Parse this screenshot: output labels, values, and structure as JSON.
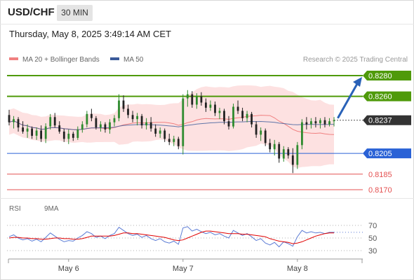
{
  "header": {
    "symbol": "USD/CHF",
    "timeframe": "30 MIN",
    "datetime": "Thursday, May 8, 2025 3:49:14 AM CET"
  },
  "legend": {
    "ma20_label": "MA 20 + Bollinger Bands",
    "ma50_label": "MA 50",
    "ma20_color": "#f08080",
    "ma50_color": "#3a5a9a",
    "credit": "Research © 2025 Trading Central"
  },
  "rsi_legend": {
    "rsi_label": "RSI",
    "ma_label": "9MA",
    "rsi_color": "#5b7bd5",
    "ma_color": "#e00000"
  },
  "levels": [
    {
      "value": "0.8280",
      "kind": "resistance",
      "color": "#4f9a0a"
    },
    {
      "value": "0.8260",
      "kind": "resistance",
      "color": "#4f9a0a"
    },
    {
      "value": "0.8237",
      "kind": "current",
      "color": "#333333"
    },
    {
      "value": "0.8205",
      "kind": "pivot",
      "color": "#2a62d6"
    },
    {
      "value": "0.8185",
      "kind": "support",
      "color": "#e45050"
    },
    {
      "value": "0.8170",
      "kind": "support",
      "color": "#e45050"
    }
  ],
  "chart_data": [
    {
      "type": "candlestick",
      "ylim": [
        0.816,
        0.829
      ],
      "x_ticks": [
        "May 6",
        "May 7",
        "May 8"
      ],
      "candles": [
        [
          0.8242,
          0.8247,
          0.8232,
          0.8235
        ],
        [
          0.8235,
          0.8241,
          0.8229,
          0.8238
        ],
        [
          0.8238,
          0.824,
          0.8226,
          0.823
        ],
        [
          0.823,
          0.8236,
          0.8224,
          0.8226
        ],
        [
          0.8226,
          0.8233,
          0.822,
          0.8229
        ],
        [
          0.8229,
          0.8231,
          0.8219,
          0.8222
        ],
        [
          0.8222,
          0.823,
          0.8218,
          0.8227
        ],
        [
          0.8227,
          0.8232,
          0.8216,
          0.8219
        ],
        [
          0.8219,
          0.8234,
          0.8215,
          0.8231
        ],
        [
          0.8231,
          0.8243,
          0.8228,
          0.824
        ],
        [
          0.824,
          0.8244,
          0.823,
          0.8232
        ],
        [
          0.8232,
          0.8236,
          0.8224,
          0.8226
        ],
        [
          0.8226,
          0.8229,
          0.8216,
          0.8219
        ],
        [
          0.8219,
          0.8228,
          0.8214,
          0.8224
        ],
        [
          0.8224,
          0.8226,
          0.8217,
          0.822
        ],
        [
          0.822,
          0.8231,
          0.8218,
          0.8228
        ],
        [
          0.8228,
          0.8236,
          0.8225,
          0.8233
        ],
        [
          0.8233,
          0.8246,
          0.823,
          0.8243
        ],
        [
          0.8243,
          0.8248,
          0.8236,
          0.8239
        ],
        [
          0.8239,
          0.8241,
          0.8228,
          0.823
        ],
        [
          0.823,
          0.8236,
          0.8226,
          0.8233
        ],
        [
          0.8233,
          0.8235,
          0.8225,
          0.8228
        ],
        [
          0.8228,
          0.8238,
          0.8224,
          0.8235
        ],
        [
          0.8235,
          0.8242,
          0.8231,
          0.8239
        ],
        [
          0.8239,
          0.8262,
          0.8236,
          0.8256
        ],
        [
          0.8256,
          0.8261,
          0.8245,
          0.8248
        ],
        [
          0.8248,
          0.8252,
          0.8239,
          0.8242
        ],
        [
          0.8242,
          0.8246,
          0.8235,
          0.8238
        ],
        [
          0.8238,
          0.8244,
          0.8232,
          0.8241
        ],
        [
          0.8241,
          0.8243,
          0.8229,
          0.8232
        ],
        [
          0.8232,
          0.8239,
          0.8228,
          0.8235
        ],
        [
          0.8235,
          0.824,
          0.8226,
          0.8229
        ],
        [
          0.8229,
          0.8233,
          0.8221,
          0.8224
        ],
        [
          0.8224,
          0.823,
          0.822,
          0.8227
        ],
        [
          0.8227,
          0.8229,
          0.8216,
          0.8219
        ],
        [
          0.8219,
          0.8224,
          0.8213,
          0.8216
        ],
        [
          0.8216,
          0.8222,
          0.8212,
          0.8219
        ],
        [
          0.8219,
          0.8221,
          0.8209,
          0.8212
        ],
        [
          0.8212,
          0.8262,
          0.8204,
          0.8258
        ],
        [
          0.8258,
          0.8266,
          0.825,
          0.8262
        ],
        [
          0.8262,
          0.8265,
          0.8249,
          0.8252
        ],
        [
          0.8252,
          0.8263,
          0.8248,
          0.826
        ],
        [
          0.826,
          0.8264,
          0.8251,
          0.8254
        ],
        [
          0.8254,
          0.8258,
          0.8245,
          0.8249
        ],
        [
          0.8249,
          0.8256,
          0.8246,
          0.8252
        ],
        [
          0.8252,
          0.8255,
          0.8241,
          0.8244
        ],
        [
          0.8244,
          0.8249,
          0.8238,
          0.8246
        ],
        [
          0.8246,
          0.8248,
          0.8233,
          0.8236
        ],
        [
          0.8236,
          0.8241,
          0.8228,
          0.8231
        ],
        [
          0.8231,
          0.8253,
          0.8229,
          0.825
        ],
        [
          0.825,
          0.8256,
          0.8243,
          0.8246
        ],
        [
          0.8246,
          0.8249,
          0.8236,
          0.8239
        ],
        [
          0.8239,
          0.8246,
          0.8235,
          0.8243
        ],
        [
          0.8243,
          0.8245,
          0.823,
          0.8233
        ],
        [
          0.8233,
          0.8236,
          0.822,
          0.8223
        ],
        [
          0.8223,
          0.823,
          0.8217,
          0.8227
        ],
        [
          0.8227,
          0.8229,
          0.8212,
          0.8215
        ],
        [
          0.8215,
          0.8219,
          0.8206,
          0.8209
        ],
        [
          0.8209,
          0.8218,
          0.8203,
          0.8214
        ],
        [
          0.8214,
          0.8216,
          0.8196,
          0.82
        ],
        [
          0.82,
          0.8212,
          0.8197,
          0.8209
        ],
        [
          0.8209,
          0.8211,
          0.82,
          0.8203
        ],
        [
          0.8203,
          0.821,
          0.8186,
          0.8194
        ],
        [
          0.8194,
          0.8216,
          0.819,
          0.8213
        ],
        [
          0.8213,
          0.8238,
          0.8209,
          0.8235
        ],
        [
          0.8235,
          0.824,
          0.8228,
          0.8233
        ],
        [
          0.8233,
          0.8239,
          0.8229,
          0.8236
        ],
        [
          0.8236,
          0.824,
          0.823,
          0.8234
        ],
        [
          0.8234,
          0.8239,
          0.8229,
          0.8237
        ],
        [
          0.8237,
          0.824,
          0.823,
          0.8233
        ],
        [
          0.8233,
          0.8239,
          0.8231,
          0.8236
        ],
        [
          0.8236,
          0.824,
          0.8231,
          0.8237
        ]
      ]
    },
    {
      "type": "line",
      "name": "RSI",
      "ylim": [
        20,
        80
      ],
      "y_ticks": [
        70,
        50,
        30
      ],
      "rsi": [
        52,
        55,
        50,
        47,
        49,
        45,
        48,
        44,
        51,
        58,
        53,
        48,
        44,
        46,
        45,
        50,
        54,
        60,
        57,
        51,
        53,
        49,
        54,
        57,
        67,
        62,
        57,
        54,
        56,
        51,
        54,
        49,
        46,
        49,
        44,
        42,
        45,
        40,
        66,
        68,
        61,
        64,
        60,
        57,
        59,
        55,
        57,
        53,
        50,
        62,
        58,
        54,
        57,
        52,
        46,
        49,
        42,
        39,
        43,
        36,
        44,
        41,
        37,
        52,
        62,
        58,
        60,
        58,
        59,
        57,
        59,
        59
      ],
      "ma": [
        50,
        51,
        51,
        50,
        50,
        49,
        49,
        48,
        48,
        49,
        50,
        50,
        49,
        49,
        48,
        48,
        49,
        51,
        53,
        53,
        53,
        53,
        53,
        54,
        56,
        58,
        58,
        57,
        57,
        56,
        55,
        54,
        53,
        52,
        51,
        49,
        47,
        46,
        47,
        50,
        53,
        56,
        59,
        61,
        61,
        60,
        59,
        58,
        57,
        57,
        57,
        56,
        56,
        55,
        54,
        53,
        52,
        49,
        47,
        45,
        44,
        43,
        41,
        42,
        44,
        47,
        50,
        53,
        55,
        57,
        58,
        58
      ]
    }
  ]
}
